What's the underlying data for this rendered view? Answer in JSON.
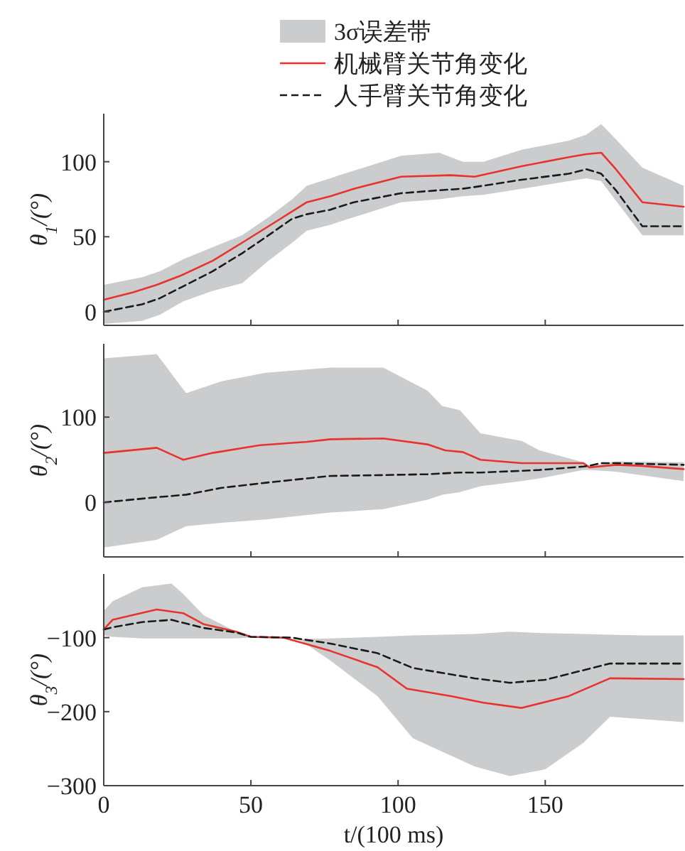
{
  "chart_data": [
    {
      "type": "line",
      "ylabel": "θ$_{1}$/(°)",
      "legend_title": "3σ误差带",
      "xlim": [
        0,
        197
      ],
      "xticks": [
        {
          "value": 0,
          "label": null
        },
        {
          "value": 50,
          "label": null
        },
        {
          "value": 100,
          "label": null
        },
        {
          "value": 150,
          "label": null
        }
      ],
      "ylim": [
        -9,
        132
      ],
      "yticks": [
        0,
        50,
        100
      ],
      "tick_labels": "y",
      "legend": "top",
      "grid": false,
      "marker": "none",
      "series": [
        {
          "name": "机械臂关节角变化",
          "color": "#e8322e",
          "line_style": "solid",
          "x": [
            0,
            10,
            18,
            26,
            37,
            47,
            56,
            69,
            77,
            85,
            101,
            118,
            126,
            142,
            158,
            164,
            169,
            174,
            183,
            197
          ],
          "values": [
            8,
            13,
            18,
            24,
            34,
            46,
            57,
            73,
            77,
            82,
            90,
            91,
            90,
            97,
            103,
            105,
            106,
            95,
            73,
            70
          ]
        },
        {
          "name": "人手臂关节角变化",
          "color": "#1a1a1a",
          "line_style": "dashed",
          "x": [
            0,
            13,
            19,
            27,
            37,
            47,
            56,
            64,
            69,
            77,
            80,
            85,
            101,
            114,
            122,
            129,
            142,
            158,
            164,
            169,
            174,
            183,
            197
          ],
          "values": [
            0,
            5,
            9,
            17,
            27,
            39,
            51,
            62,
            65,
            68,
            70,
            73,
            79,
            81,
            82,
            84,
            88,
            92,
            95,
            92,
            81,
            57,
            57
          ],
          "upper": [
            18,
            23,
            27,
            35,
            43,
            51,
            63,
            75,
            84,
            89,
            91,
            94,
            104,
            106,
            100,
            100,
            108,
            114,
            118,
            125,
            115,
            96,
            84
          ],
          "lower": [
            -8,
            -6,
            -2,
            7,
            14,
            19,
            34,
            46,
            54,
            58,
            60,
            63,
            73,
            75,
            77,
            78,
            82,
            87,
            89,
            87,
            74,
            51,
            51
          ]
        }
      ]
    },
    {
      "type": "line",
      "ylabel": "θ$_{2}$/(°)",
      "xlim": [
        0,
        197
      ],
      "xticks": [
        {
          "value": 0,
          "label": null
        },
        {
          "value": 50,
          "label": null
        },
        {
          "value": 100,
          "label": null
        },
        {
          "value": 150,
          "label": null
        }
      ],
      "ylim": [
        -64,
        186
      ],
      "yticks": [
        0,
        100
      ],
      "tick_labels": "y",
      "grid": false,
      "marker": "none",
      "series": [
        {
          "color": "#e8322e",
          "line_style": "solid",
          "x": [
            0,
            18,
            27,
            37,
            53,
            69,
            77,
            95,
            110,
            116,
            122,
            128,
            142,
            163,
            165,
            174,
            182,
            197
          ],
          "values": [
            58,
            64,
            50,
            58,
            67,
            71,
            74,
            75,
            68,
            61,
            59,
            50,
            46,
            46,
            41,
            44,
            43,
            39
          ]
        },
        {
          "color": "#1a1a1a",
          "line_style": "dashed",
          "x": [
            0,
            18,
            28,
            40,
            55,
            77,
            95,
            110,
            115,
            121,
            128,
            142,
            148,
            163,
            165,
            169,
            174,
            197
          ],
          "values": [
            0,
            6,
            9,
            17,
            23,
            31,
            32,
            33,
            34,
            35,
            35,
            37,
            38,
            42,
            43,
            46,
            46,
            44
          ],
          "upper": [
            169,
            174,
            128,
            142,
            152,
            158,
            158,
            131,
            113,
            108,
            81,
            72,
            61,
            47,
            43,
            45,
            48,
            47
          ],
          "lower": [
            -53,
            -44,
            -28,
            -24,
            -20,
            -12,
            -8,
            3,
            9,
            12,
            19,
            25,
            28,
            38,
            38,
            37,
            36,
            25
          ]
        }
      ]
    },
    {
      "type": "line",
      "xlabel": "t/(100 ms)",
      "ylabel": "θ$_{3}$/(°)",
      "xlim": [
        0,
        197
      ],
      "xticks": [
        0,
        50,
        100,
        150
      ],
      "ylim": [
        -300,
        -14
      ],
      "yticks": [
        -300,
        -200,
        -100
      ],
      "grid": false,
      "marker": "none",
      "series": [
        {
          "color": "#e8322e",
          "line_style": "solid",
          "x": [
            0,
            3,
            18,
            27,
            34,
            45,
            50,
            61,
            77,
            93,
            103,
            118,
            129,
            142,
            158,
            172,
            197
          ],
          "values": [
            -89,
            -76,
            -62,
            -67,
            -82,
            -92,
            -99,
            -100,
            -118,
            -140,
            -169,
            -179,
            -188,
            -195,
            -179,
            -155,
            -156
          ]
        },
        {
          "color": "#1a1a1a",
          "line_style": "dashed",
          "x": [
            0,
            3,
            13,
            23,
            27,
            34,
            45,
            50,
            64,
            67,
            77,
            93,
            105,
            126,
            138,
            150,
            163,
            172,
            183,
            197
          ],
          "values": [
            -89,
            -86,
            -79,
            -76,
            -80,
            -87,
            -93,
            -99,
            -100,
            -102,
            -108,
            -121,
            -141,
            -155,
            -161,
            -157,
            -144,
            -135,
            -135,
            -135
          ],
          "upper": [
            -64,
            -51,
            -32,
            -27,
            -41,
            -70,
            -92,
            -100,
            -100,
            -102,
            -101,
            -99,
            -97,
            -95,
            -92,
            -94,
            -95,
            -96,
            -97,
            -97
          ],
          "lower": [
            -97,
            -99,
            -101,
            -101,
            -101,
            -101,
            -101,
            -100,
            -100,
            -104,
            -131,
            -179,
            -236,
            -274,
            -287,
            -278,
            -242,
            -207,
            -210,
            -214
          ]
        }
      ]
    }
  ]
}
